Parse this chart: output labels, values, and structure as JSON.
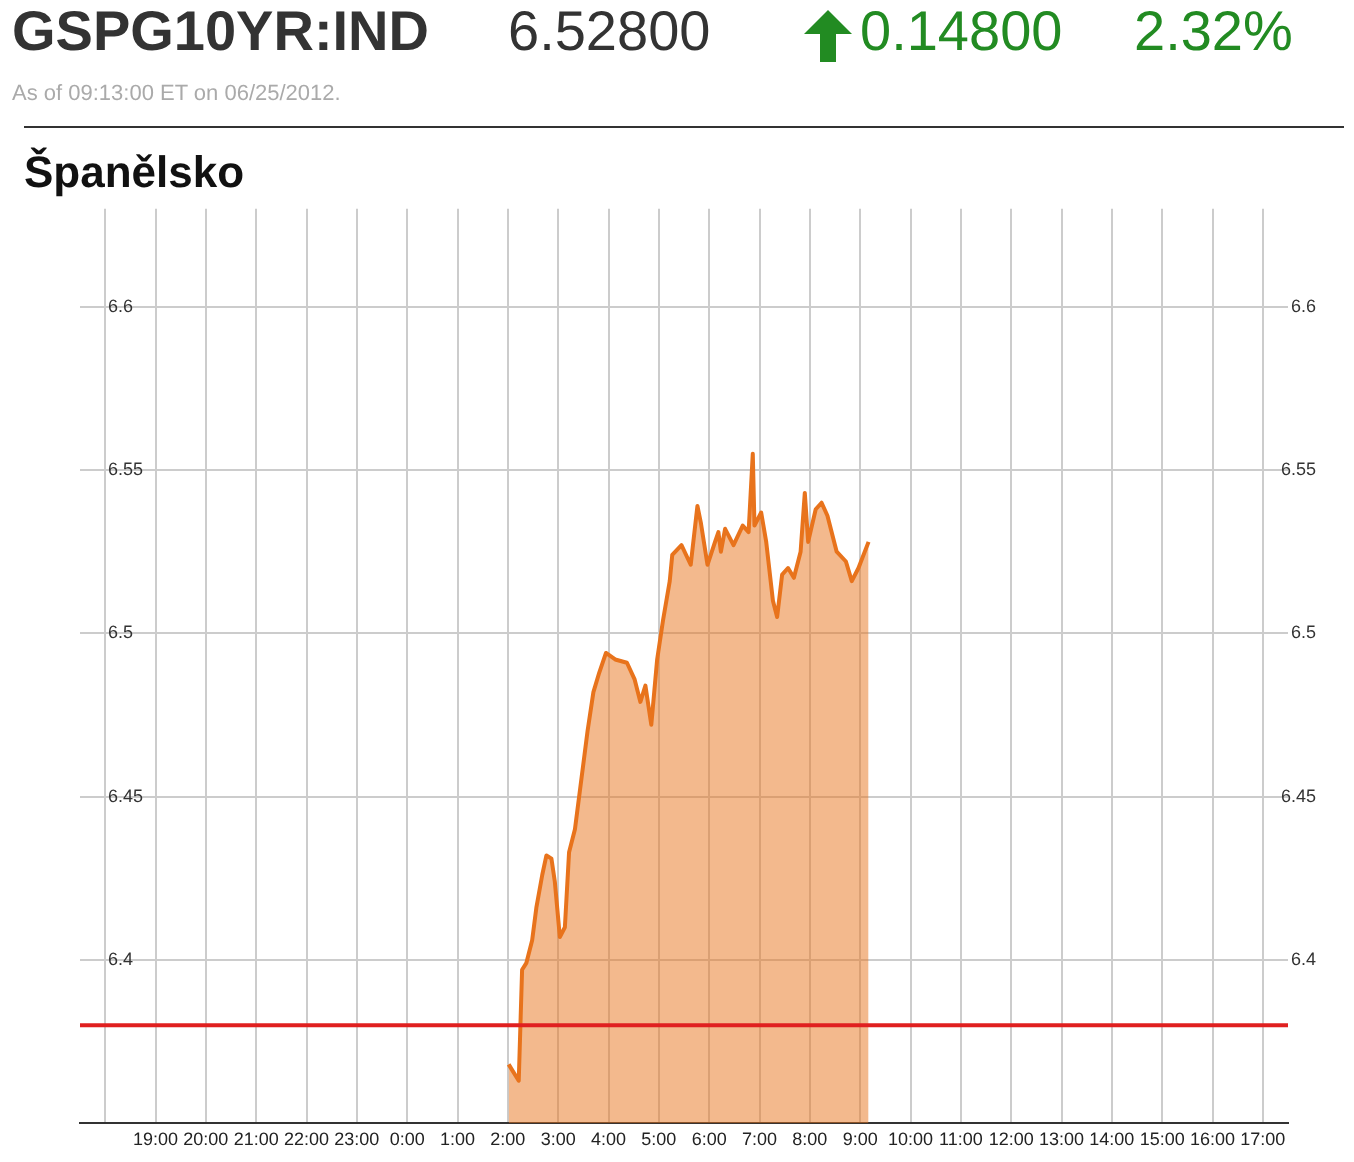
{
  "chart_data": {
    "type": "area",
    "title": "Španělsko",
    "annotations": [
      "GSPG10YR:IND",
      "6.52800",
      "0.14800",
      "2.32%",
      "As of 09:13:00 ET on 06/25/2012."
    ],
    "color": "#e8731c",
    "x": [
      "2012-06-25T02:01",
      "2012-06-25T02:13",
      "2012-06-25T02:17",
      "2012-06-25T02:22",
      "2012-06-25T02:29",
      "2012-06-25T02:34",
      "2012-06-25T02:41",
      "2012-06-25T02:46",
      "2012-06-25T02:52",
      "2012-06-25T02:56",
      "2012-06-25T03:02",
      "2012-06-25T03:08",
      "2012-06-25T03:13",
      "2012-06-25T03:20",
      "2012-06-25T03:28",
      "2012-06-25T03:35",
      "2012-06-25T03:42",
      "2012-06-25T03:49",
      "2012-06-25T03:57",
      "2012-06-25T04:08",
      "2012-06-25T04:22",
      "2012-06-25T04:31",
      "2012-06-25T04:38",
      "2012-06-25T04:44",
      "2012-06-25T04:51",
      "2012-06-25T04:58",
      "2012-06-25T05:05",
      "2012-06-25T05:13",
      "2012-06-25T05:16",
      "2012-06-25T05:27",
      "2012-06-25T05:38",
      "2012-06-25T05:46",
      "2012-06-25T05:50",
      "2012-06-25T05:58",
      "2012-06-25T06:07",
      "2012-06-25T06:11",
      "2012-06-25T06:14",
      "2012-06-25T06:19",
      "2012-06-25T06:29",
      "2012-06-25T06:40",
      "2012-06-25T06:47",
      "2012-06-25T06:52",
      "2012-06-25T06:54",
      "2012-06-25T07:02",
      "2012-06-25T07:08",
      "2012-06-25T07:16",
      "2012-06-25T07:21",
      "2012-06-25T07:27",
      "2012-06-25T07:34",
      "2012-06-25T07:41",
      "2012-06-25T07:49",
      "2012-06-25T07:54",
      "2012-06-25T07:58",
      "2012-06-25T08:07",
      "2012-06-25T08:14",
      "2012-06-25T08:21",
      "2012-06-25T08:32",
      "2012-06-25T08:43",
      "2012-06-25T08:50",
      "2012-06-25T08:58",
      "2012-06-25T09:10"
    ],
    "values": [
      6.368,
      6.363,
      6.397,
      6.399,
      6.406,
      6.416,
      6.426,
      6.432,
      6.431,
      6.424,
      6.407,
      6.41,
      6.433,
      6.44,
      6.456,
      6.47,
      6.482,
      6.488,
      6.494,
      6.492,
      6.491,
      6.486,
      6.479,
      6.484,
      6.472,
      6.492,
      6.504,
      6.516,
      6.524,
      6.527,
      6.521,
      6.539,
      6.534,
      6.521,
      6.528,
      6.531,
      6.525,
      6.532,
      6.527,
      6.533,
      6.531,
      6.555,
      6.533,
      6.537,
      6.528,
      6.51,
      6.505,
      6.518,
      6.52,
      6.517,
      6.525,
      6.543,
      6.528,
      6.538,
      6.54,
      6.536,
      6.525,
      6.522,
      6.516,
      6.52,
      6.528
    ],
    "xlim": [
      "2012-06-24T17:30",
      "2012-06-25T17:30"
    ],
    "xticks": [
      {
        "value": "2012-06-24T18:00",
        "label": null
      },
      {
        "value": "2012-06-24T19:00",
        "label": "19:00"
      },
      {
        "value": "2012-06-24T20:00",
        "label": "20:00"
      },
      {
        "value": "2012-06-24T21:00",
        "label": "21:00"
      },
      {
        "value": "2012-06-24T22:00",
        "label": "22:00"
      },
      {
        "value": "2012-06-24T23:00",
        "label": "23:00"
      },
      {
        "value": "2012-06-25T00:00",
        "label": "0:00"
      },
      {
        "value": "2012-06-25T01:00",
        "label": "1:00"
      },
      {
        "value": "2012-06-25T02:00",
        "label": "2:00"
      },
      {
        "value": "2012-06-25T03:00",
        "label": "3:00"
      },
      {
        "value": "2012-06-25T04:00",
        "label": "4:00"
      },
      {
        "value": "2012-06-25T05:00",
        "label": "5:00"
      },
      {
        "value": "2012-06-25T06:00",
        "label": "6:00"
      },
      {
        "value": "2012-06-25T07:00",
        "label": "7:00"
      },
      {
        "value": "2012-06-25T08:00",
        "label": "8:00"
      },
      {
        "value": "2012-06-25T09:00",
        "label": "9:00"
      },
      {
        "value": "2012-06-25T10:00",
        "label": "10:00"
      },
      {
        "value": "2012-06-25T11:00",
        "label": "11:00"
      },
      {
        "value": "2012-06-25T12:00",
        "label": "12:00"
      },
      {
        "value": "2012-06-25T13:00",
        "label": "13:00"
      },
      {
        "value": "2012-06-25T14:00",
        "label": "14:00"
      },
      {
        "value": "2012-06-25T15:00",
        "label": "15:00"
      },
      {
        "value": "2012-06-25T16:00",
        "label": "16:00"
      },
      {
        "value": "2012-06-25T17:00",
        "label": "17:00"
      }
    ],
    "ylim": [
      6.35,
      6.63
    ],
    "yticks": [
      6.4,
      6.45,
      6.5,
      6.55,
      6.6
    ],
    "y2lim": [
      6.35,
      6.63
    ],
    "y2ticks": [
      6.4,
      6.45,
      6.5,
      6.55,
      6.6
    ],
    "ref_lines": [
      {
        "axis": "y",
        "value": 6.38,
        "label": null,
        "color": "#e02020"
      }
    ],
    "grid": true,
    "legend": false,
    "marker": "none"
  }
}
